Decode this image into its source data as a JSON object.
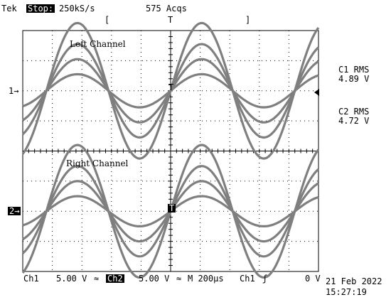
{
  "header": {
    "brand": "Tek",
    "run_state": "Stop:",
    "sample_rate": "250kS/s",
    "acquisitions": "575 Acqs",
    "trigger_bracket_left": "[",
    "trigger_bracket_mark": "T",
    "trigger_bracket_right": "]"
  },
  "channels": {
    "ch1_marker": "1→",
    "ch2_marker": "2→",
    "left_label": "Left Channel",
    "right_label": "Right Channel",
    "trigger_mark": "T"
  },
  "measurements": {
    "c1_label": "C1 RMS",
    "c1_value": "4.89 V",
    "c2_label": "C2 RMS",
    "c2_value": "4.72 V"
  },
  "footer": {
    "ch1": "Ch1",
    "ch1_scale": "5.00 V",
    "ch1_coupling": "≈",
    "ch2": "Ch2",
    "ch2_scale": "5.00 V",
    "ch2_coupling": "≈",
    "timebase": "M 200µs",
    "trig_source": "Ch1",
    "trig_slope": "ʃ",
    "trig_level": "0 V",
    "date": "21 Feb 2022",
    "time": "15:27:19"
  },
  "colors": {
    "trace": "#7f7f7f",
    "graticule": "#000000",
    "background": "#ffffff"
  },
  "chart_data": {
    "type": "line",
    "panels": [
      {
        "name": "Left Channel",
        "period_divisions": 4.2,
        "amplitudes_div": [
          0.55,
          1.05,
          1.55,
          2.25
        ]
      },
      {
        "name": "Right Channel",
        "period_divisions": 4.2,
        "amplitudes_div": [
          0.5,
          1.0,
          1.5,
          2.2
        ]
      }
    ],
    "divisions": {
      "x": 10,
      "y": 8
    },
    "grid": true
  }
}
